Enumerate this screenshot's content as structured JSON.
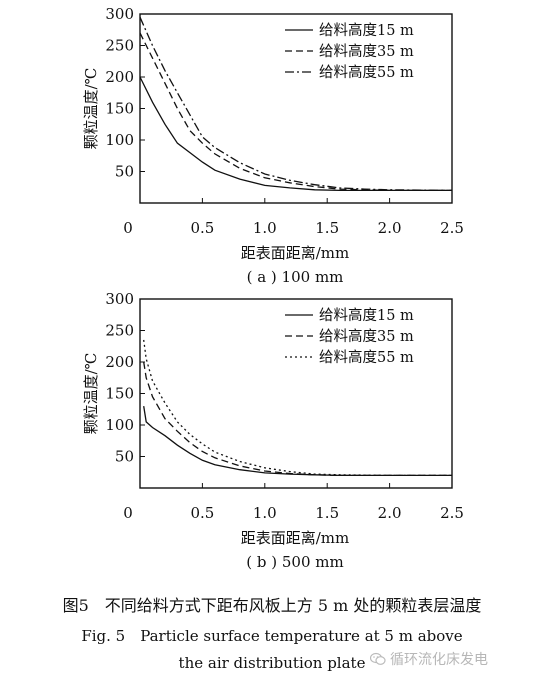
{
  "chart_data": [
    {
      "type": "line",
      "subtitle": "( a ) 100 mm",
      "xlabel": "距表面距离/mm",
      "ylabel": "颗粒温度/℃",
      "xlim": [
        0,
        2.5
      ],
      "ylim": [
        0,
        300
      ],
      "xticks": [
        "0",
        "0.5",
        "1.0",
        "1.5",
        "2.0",
        "2.5"
      ],
      "yticks": [
        "50",
        "100",
        "150",
        "200",
        "250",
        "300"
      ],
      "legend_position": "top-right",
      "grid": false,
      "series": [
        {
          "name": "给料高度15 m",
          "style": "solid",
          "x": [
            0,
            0.1,
            0.2,
            0.3,
            0.4,
            0.5,
            0.6,
            0.8,
            1.0,
            1.2,
            1.4,
            1.6,
            1.8,
            2.0,
            2.5
          ],
          "y": [
            200,
            160,
            125,
            95,
            80,
            65,
            52,
            38,
            28,
            24,
            21,
            20,
            20,
            20,
            20
          ]
        },
        {
          "name": "给料高度35 m",
          "style": "dashed",
          "x": [
            0,
            0.1,
            0.2,
            0.3,
            0.4,
            0.5,
            0.6,
            0.8,
            1.0,
            1.2,
            1.4,
            1.6,
            1.8,
            2.0,
            2.5
          ],
          "y": [
            270,
            230,
            190,
            150,
            115,
            95,
            78,
            55,
            40,
            32,
            26,
            22,
            21,
            20,
            20
          ]
        },
        {
          "name": "给料高度55 m",
          "style": "dashdot",
          "x": [
            0,
            0.1,
            0.2,
            0.3,
            0.4,
            0.5,
            0.6,
            0.8,
            1.0,
            1.2,
            1.4,
            1.6,
            1.8,
            2.0,
            2.5
          ],
          "y": [
            295,
            250,
            210,
            175,
            140,
            105,
            88,
            64,
            46,
            36,
            29,
            24,
            22,
            21,
            20
          ]
        }
      ]
    },
    {
      "type": "line",
      "subtitle": "( b ) 500 mm",
      "xlabel": "距表面距离/mm",
      "ylabel": "颗粒温度/℃",
      "xlim": [
        0,
        2.5
      ],
      "ylim": [
        0,
        300
      ],
      "xticks": [
        "0",
        "0.5",
        "1.0",
        "1.5",
        "2.0",
        "2.5"
      ],
      "yticks": [
        "50",
        "100",
        "150",
        "200",
        "250",
        "300"
      ],
      "legend_position": "top-right",
      "grid": false,
      "series": [
        {
          "name": "给料高度15 m",
          "style": "solid",
          "x": [
            0.03,
            0.05,
            0.1,
            0.2,
            0.3,
            0.4,
            0.5,
            0.6,
            0.8,
            1.0,
            1.2,
            1.4,
            1.6,
            2.0,
            2.5
          ],
          "y": [
            130,
            105,
            96,
            83,
            68,
            55,
            44,
            37,
            29,
            24,
            22,
            21,
            20,
            20,
            20
          ]
        },
        {
          "name": "给料高度35 m",
          "style": "dashed",
          "x": [
            0.03,
            0.05,
            0.1,
            0.2,
            0.3,
            0.4,
            0.5,
            0.6,
            0.8,
            1.0,
            1.2,
            1.4,
            1.6,
            2.0,
            2.5
          ],
          "y": [
            200,
            175,
            145,
            110,
            90,
            72,
            58,
            48,
            35,
            27,
            23,
            21,
            20,
            20,
            20
          ]
        },
        {
          "name": "给料高度55 m",
          "style": "dotted",
          "x": [
            0.03,
            0.05,
            0.1,
            0.2,
            0.3,
            0.4,
            0.5,
            0.6,
            0.8,
            1.0,
            1.2,
            1.4,
            1.6,
            2.0,
            2.5
          ],
          "y": [
            235,
            205,
            170,
            135,
            105,
            85,
            70,
            57,
            42,
            32,
            26,
            22,
            21,
            20,
            20
          ]
        }
      ]
    }
  ],
  "caption": {
    "zh": "图5　不同给料方式下距布风板上方 5 m 处的颗粒表层温度",
    "en_line1": "Fig. 5　Particle surface temperature at 5 m above",
    "en_line2": "the air distribution plate"
  },
  "watermark": {
    "text": "循环流化床发电",
    "logo_icon": "wechat-logo-icon"
  }
}
